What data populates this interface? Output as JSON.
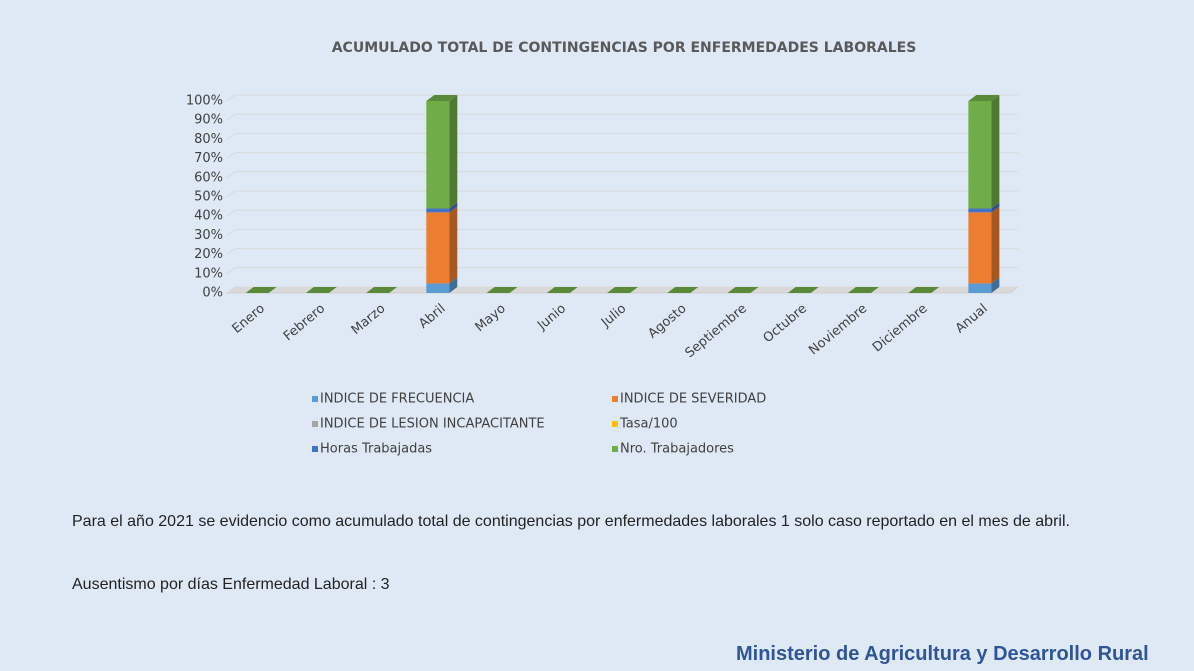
{
  "chart_data": {
    "type": "bar",
    "stacked": "percent",
    "title": "ACUMULADO TOTAL DE CONTINGENCIAS POR ENFERMEDADES LABORALES",
    "categories": [
      "Enero",
      "Febrero",
      "Marzo",
      "Abril",
      "Mayo",
      "Junio",
      "Julio",
      "Agosto",
      "Septiembre",
      "Octubre",
      "Noviembre",
      "Diciembre",
      "Anual"
    ],
    "series": [
      {
        "name": "INDICE DE FRECUENCIA",
        "color": "#5b9bd5",
        "values": [
          0,
          0,
          0,
          5,
          0,
          0,
          0,
          0,
          0,
          0,
          0,
          0,
          5
        ]
      },
      {
        "name": "INDICE DE SEVERIDAD",
        "color": "#ed7d31",
        "values": [
          0,
          0,
          0,
          37,
          0,
          0,
          0,
          0,
          0,
          0,
          0,
          0,
          37
        ]
      },
      {
        "name": "INDICE DE LESION INCAPACITANTE",
        "color": "#a5a5a5",
        "values": [
          0,
          0,
          0,
          0,
          0,
          0,
          0,
          0,
          0,
          0,
          0,
          0,
          0
        ]
      },
      {
        "name": "Tasa/100",
        "color": "#ffc000",
        "values": [
          0,
          0,
          0,
          0,
          0,
          0,
          0,
          0,
          0,
          0,
          0,
          0,
          0
        ]
      },
      {
        "name": "Horas Trabajadas",
        "color": "#4472c4",
        "values": [
          0,
          0,
          0,
          2,
          0,
          0,
          0,
          0,
          0,
          0,
          0,
          0,
          2
        ]
      },
      {
        "name": "Nro. Trabajadores",
        "color": "#70ad47",
        "values": [
          0,
          0,
          0,
          56,
          0,
          0,
          0,
          0,
          0,
          0,
          0,
          0,
          56
        ]
      }
    ],
    "ylim": [
      0,
      100
    ],
    "yticks": [
      {
        "value": 0,
        "label": "0%"
      },
      {
        "value": 10,
        "label": "10%"
      },
      {
        "value": 20,
        "label": "20%"
      },
      {
        "value": 30,
        "label": "30%"
      },
      {
        "value": 40,
        "label": "40%"
      },
      {
        "value": 50,
        "label": "50%"
      },
      {
        "value": 60,
        "label": "60%"
      },
      {
        "value": 70,
        "label": "70%"
      },
      {
        "value": 80,
        "label": "80%"
      },
      {
        "value": 90,
        "label": "90%"
      },
      {
        "value": 100,
        "label": "100%"
      }
    ],
    "grid": true,
    "legend": "bottom"
  },
  "text": {
    "paragraph": "Para el año 2021 se evidencio como acumulado total de contingencias por enfermedades laborales 1 solo caso reportado en el mes de abril.",
    "note": "Ausentismo por días Enfermedad Laboral : 3",
    "footer": "Ministerio de Agricultura y Desarrollo Rural"
  }
}
